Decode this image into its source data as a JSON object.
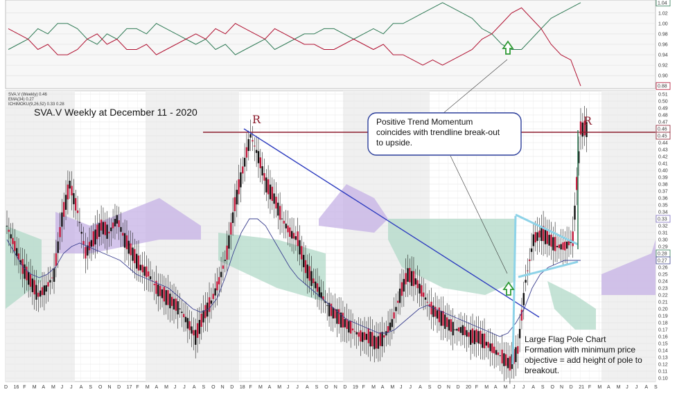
{
  "chart_data": {
    "type": "candlestick",
    "title": "SVA.V Weekly at December 11 - 2020",
    "legend": [
      "SVA.V (Weekly) 0.46",
      "EMA(34) 0.27",
      "ICHIMOKU(9,26,52) 0.33 0.28"
    ],
    "resistance_level": 0.455,
    "resistance_marks": [
      "R",
      "R"
    ],
    "annotations": [
      "Positive Trend Momentum coincides with trendline break-out to upside.",
      "Large Flag Pole Chart Formation with minimum price objective = add height of pole to breakout."
    ],
    "y_axis": {
      "range": [
        0.095,
        0.515
      ],
      "ticks": [
        "0.10",
        "0.11",
        "0.12",
        "0.13",
        "0.14",
        "0.15",
        "0.16",
        "0.17",
        "0.18",
        "0.19",
        "0.20",
        "0.21",
        "0.22",
        "0.23",
        "0.24",
        "0.25",
        "0.26",
        "0.27",
        "0.28",
        "0.29",
        "0.30",
        "0.31",
        "0.32",
        "0.33",
        "0.34",
        "0.35",
        "0.36",
        "0.37",
        "0.38",
        "0.39",
        "0.40",
        "0.41",
        "0.42",
        "0.43",
        "0.44",
        "0.45",
        "0.46",
        "0.47",
        "0.48",
        "0.49",
        "0.50",
        "0.51"
      ],
      "badges": [
        "0.33",
        "0.28",
        "0.27",
        "0.46",
        "0.45"
      ]
    },
    "top_panel_axis": {
      "ticks": [
        "1.02",
        "1.00",
        "0.98",
        "0.96",
        "0.94",
        "0.92",
        "0.90"
      ],
      "badges": [
        "1.04",
        "0.88"
      ]
    },
    "x_axis": {
      "labels": [
        "D",
        "16",
        "F",
        "M",
        "A",
        "M",
        "J",
        "J",
        "A",
        "S",
        "O",
        "N",
        "D",
        "17",
        "F",
        "M",
        "A",
        "M",
        "J",
        "J",
        "A",
        "S",
        "O",
        "N",
        "D",
        "18",
        "F",
        "M",
        "A",
        "M",
        "J",
        "J",
        "A",
        "S",
        "O",
        "N",
        "D",
        "19",
        "F",
        "M",
        "A",
        "M",
        "J",
        "J",
        "A",
        "S",
        "O",
        "N",
        "D",
        "20",
        "F",
        "M",
        "A",
        "M",
        "J",
        "J",
        "A",
        "S",
        "O",
        "N",
        "D",
        "21",
        "F",
        "M",
        "A",
        "M",
        "J",
        "J",
        "A",
        "S"
      ]
    },
    "price_path": [
      0.32,
      0.29,
      0.26,
      0.24,
      0.22,
      0.23,
      0.25,
      0.33,
      0.38,
      0.34,
      0.28,
      0.3,
      0.32,
      0.31,
      0.33,
      0.3,
      0.28,
      0.26,
      0.25,
      0.23,
      0.22,
      0.21,
      0.2,
      0.18,
      0.16,
      0.19,
      0.21,
      0.24,
      0.28,
      0.35,
      0.4,
      0.45,
      0.42,
      0.38,
      0.36,
      0.33,
      0.31,
      0.3,
      0.26,
      0.24,
      0.22,
      0.2,
      0.19,
      0.18,
      0.17,
      0.16,
      0.16,
      0.15,
      0.16,
      0.18,
      0.22,
      0.25,
      0.24,
      0.22,
      0.2,
      0.19,
      0.18,
      0.17,
      0.17,
      0.16,
      0.16,
      0.15,
      0.14,
      0.13,
      0.12,
      0.14,
      0.24,
      0.3,
      0.31,
      0.3,
      0.29,
      0.29,
      0.3,
      0.46
    ],
    "ema_path": [
      0.3,
      0.28,
      0.26,
      0.25,
      0.245,
      0.25,
      0.26,
      0.28,
      0.29,
      0.295,
      0.29,
      0.285,
      0.28,
      0.275,
      0.27,
      0.26,
      0.25,
      0.245,
      0.24,
      0.235,
      0.23,
      0.22,
      0.21,
      0.2,
      0.195,
      0.2,
      0.215,
      0.245,
      0.28,
      0.31,
      0.33,
      0.33,
      0.32,
      0.3,
      0.28,
      0.26,
      0.245,
      0.235,
      0.225,
      0.215,
      0.205,
      0.195,
      0.185,
      0.18,
      0.175,
      0.17,
      0.165,
      0.165,
      0.17,
      0.18,
      0.19,
      0.2,
      0.205,
      0.2,
      0.195,
      0.19,
      0.185,
      0.18,
      0.175,
      0.17,
      0.165,
      0.16,
      0.165,
      0.18,
      0.2,
      0.23,
      0.25,
      0.26,
      0.265,
      0.27,
      0.27,
      0.27
    ],
    "top_green_path": [
      0.95,
      0.96,
      0.97,
      0.99,
      0.98,
      1.0,
      1.0,
      0.99,
      0.97,
      0.96,
      0.98,
      0.97,
      0.99,
      0.99,
      0.98,
      1.0,
      0.99,
      0.98,
      0.97,
      0.96,
      0.97,
      0.95,
      0.96,
      0.94,
      0.95,
      0.96,
      0.97,
      0.95,
      0.96,
      0.97,
      0.98,
      0.98,
      0.99,
      0.99,
      0.98,
      0.97,
      0.98,
      0.99,
      0.98,
      1.0,
      1.0,
      1.01,
      1.02,
      1.03,
      1.04,
      1.03,
      1.02,
      1.01,
      0.99,
      0.98,
      0.96,
      0.95,
      0.95,
      0.97,
      0.99,
      1.01,
      1.02,
      1.03,
      1.04
    ],
    "top_red_path": [
      0.99,
      0.98,
      0.97,
      0.95,
      0.96,
      0.94,
      0.94,
      0.95,
      0.97,
      0.98,
      0.96,
      0.97,
      0.95,
      0.95,
      0.96,
      0.94,
      0.95,
      0.96,
      0.97,
      0.98,
      0.97,
      0.99,
      0.98,
      1.0,
      0.99,
      0.98,
      0.97,
      0.99,
      0.98,
      0.97,
      0.96,
      0.96,
      0.95,
      0.95,
      0.96,
      0.97,
      0.96,
      0.95,
      0.96,
      0.94,
      0.94,
      0.93,
      0.92,
      0.93,
      0.92,
      0.93,
      0.94,
      0.95,
      0.97,
      0.98,
      1.0,
      1.02,
      1.03,
      1.01,
      0.99,
      0.96,
      0.94,
      0.93,
      0.88
    ]
  }
}
